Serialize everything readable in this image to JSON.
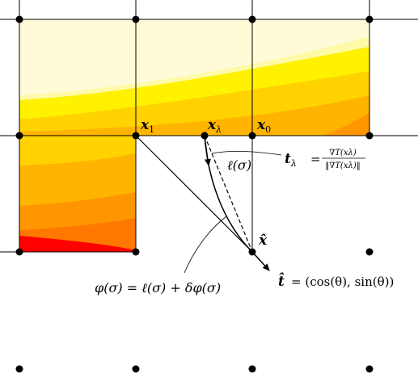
{
  "labels": {
    "x1_main": "x",
    "x1_sub": "1",
    "xlambda_main": "x",
    "xlambda_sub": "λ",
    "x0_main": "x",
    "x0_sub": "0",
    "xhat": "x̂",
    "ell": "ℓ(σ)",
    "t_lambda_lhs": "t",
    "t_lambda_sub": "λ",
    "t_lambda_eq": "=",
    "t_lambda_num": "∇T(xλ)",
    "t_lambda_den": "‖∇T(xλ)‖",
    "phi_eq": "φ(σ) = ℓ(σ) + δφ(σ)",
    "t_hat_lhs": "t̂",
    "t_hat_rhs": "= (cos(θ), sin(θ))"
  },
  "colors": {
    "level1": "#fffbd8",
    "level2": "#fffaa8",
    "level3": "#fff200",
    "level4": "#ffd200",
    "level5": "#ffb400",
    "level6": "#ff9600",
    "level7": "#ff7800",
    "level8": "#ff0000",
    "grid": "#000000"
  }
}
